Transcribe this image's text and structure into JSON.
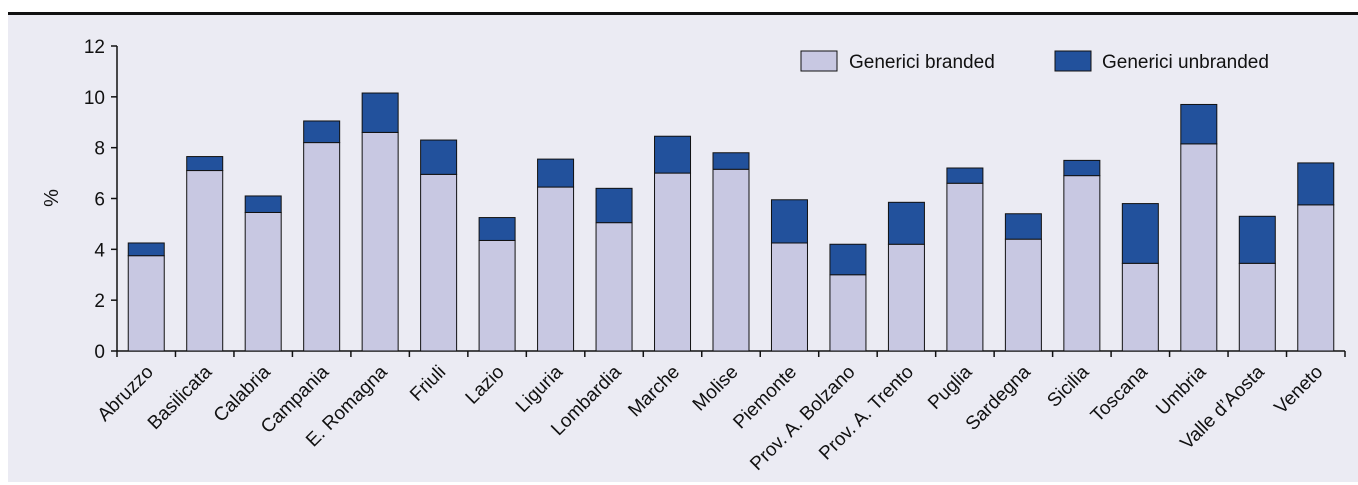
{
  "chart_data": {
    "type": "bar",
    "stacked": true,
    "categories": [
      "Abruzzo",
      "Basilicata",
      "Calabria",
      "Campania",
      "E. Romagna",
      "Friuli",
      "Lazio",
      "Liguria",
      "Lombardia",
      "Marche",
      "Molise",
      "Piemonte",
      "Prov. A. Bolzano",
      "Prov. A. Trento",
      "Puglia",
      "Sardegna",
      "Sicilia",
      "Toscana",
      "Umbria",
      "Valle d’Aosta",
      "Veneto"
    ],
    "series": [
      {
        "name": "Generici branded",
        "color": "#c8c8e2",
        "values": [
          3.75,
          7.1,
          5.45,
          8.2,
          8.6,
          6.95,
          4.35,
          6.45,
          5.05,
          7.0,
          7.15,
          4.25,
          3.0,
          4.2,
          6.6,
          4.4,
          6.9,
          3.45,
          8.15,
          3.45,
          5.75
        ]
      },
      {
        "name": "Generici unbranded",
        "color": "#22519c",
        "values": [
          0.5,
          0.55,
          0.65,
          0.85,
          1.55,
          1.35,
          0.9,
          1.1,
          1.35,
          1.45,
          0.65,
          1.7,
          1.2,
          1.65,
          0.6,
          1.0,
          0.6,
          2.35,
          1.55,
          1.85,
          1.65
        ]
      }
    ],
    "xlabel": "",
    "ylabel": "%",
    "ylim": [
      0,
      12
    ],
    "yticks": [
      "0",
      "2",
      "4",
      "6",
      "8",
      "10",
      "12"
    ],
    "legend_position": "top-right",
    "grid": false
  }
}
